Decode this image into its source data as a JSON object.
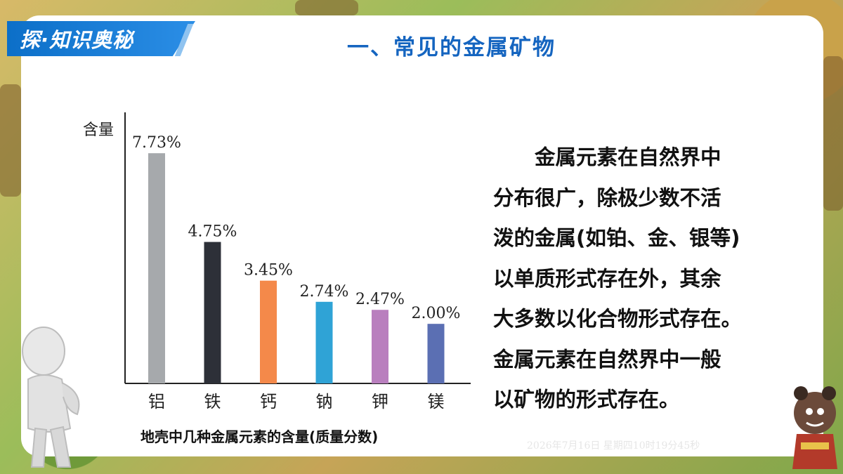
{
  "header": {
    "tag_label": "探·知识奥秘",
    "title": "一、常见的金属矿物"
  },
  "chart_data": {
    "type": "bar",
    "ylabel": "含量",
    "xlabel": "",
    "categories": [
      "铝",
      "铁",
      "钙",
      "钠",
      "钾",
      "镁"
    ],
    "values": [
      7.73,
      4.75,
      3.45,
      2.74,
      2.47,
      2.0
    ],
    "data_labels": [
      "7.73%",
      "4.75%",
      "3.45%",
      "2.74%",
      "2.47%",
      "2.00%"
    ],
    "colors": [
      "#a6a9ac",
      "#2d3038",
      "#f4894a",
      "#2fa3d6",
      "#b97fbe",
      "#5b6fb3"
    ],
    "ylim": [
      0,
      8.3
    ],
    "grid": false,
    "caption": "地壳中几种金属元素的含量(质量分数)"
  },
  "body": {
    "lines": [
      "　　金属元素在自然界中",
      "分布很广，除极少数不活",
      "泼的金属(如铂、金、银等)",
      "以单质形式存在外，其余",
      "大多数以化合物形式存在。",
      "金属元素在自然界中一般",
      "以矿物的形式存在。"
    ]
  },
  "footer": {
    "timestamp": "2026年7月16日 星期四10时19分45秒"
  }
}
